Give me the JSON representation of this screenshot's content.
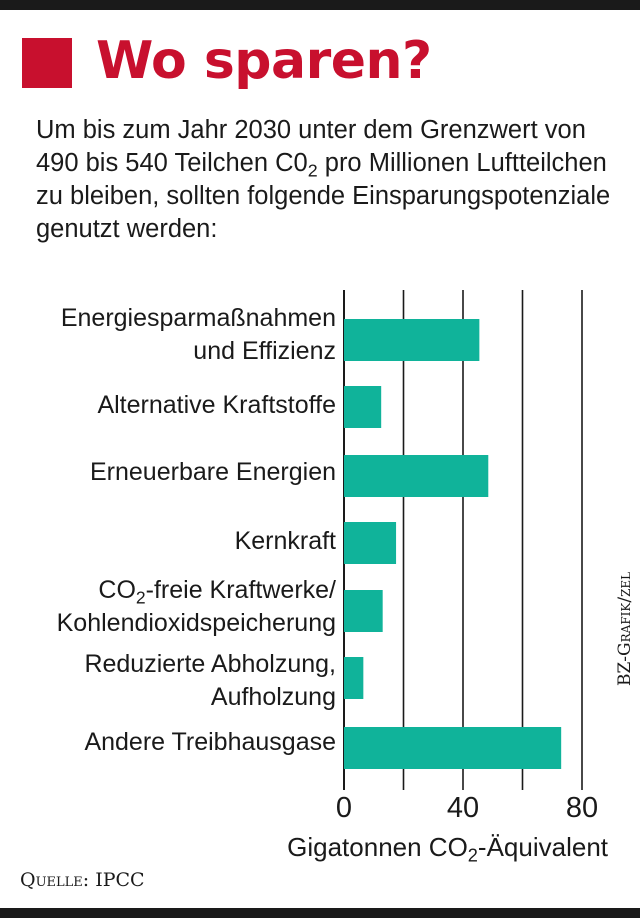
{
  "header": {
    "title": "Wo sparen?",
    "subtitle_part1": "Um bis zum Jahr 2030 unter dem Grenzwert von 490 bis 540 Teilchen C0",
    "subtitle_sub": "2",
    "subtitle_part2": " pro Millionen Luftteilchen zu bleiben, sollten folgende Einsparungspotenziale genutzt werden:"
  },
  "colors": {
    "accent": "#c8102e",
    "bar": "#10b39a",
    "text": "#1a1a1a"
  },
  "chart_data": {
    "type": "bar",
    "orientation": "horizontal",
    "categories": [
      "Energiesparmaßnahmen und Effizienz",
      "Alternative Kraftstoffe",
      "Erneuerbare Energien",
      "Kernkraft",
      "CO2-freie Kraftwerke/ Kohlendioxidspeicherung",
      "Reduzierte Abholzung, Aufholzung",
      "Andere Treibhausgase"
    ],
    "values": [
      45.5,
      12.5,
      48.5,
      17.5,
      13,
      6.5,
      73
    ],
    "xlim": [
      0,
      80
    ],
    "xticks": [
      0,
      40,
      80
    ],
    "xtick_labels": [
      "0",
      "40",
      "80"
    ],
    "gridlines": [
      0,
      20,
      40,
      60,
      80
    ],
    "grid": true,
    "xlabel_part1": "Gigatonnen CO",
    "xlabel_sub": "2",
    "xlabel_part2": "-Äquivalent",
    "labels": {
      "c0_line1": "Energiesparmaßnahmen",
      "c0_line2": "und Effizienz",
      "c1": "Alternative Kraftstoffe",
      "c2": "Erneuerbare Energien",
      "c3": "Kernkraft",
      "c4_pre": "CO",
      "c4_sub": "2",
      "c4_post": "-freie Kraftwerke/",
      "c4_line2": "Kohlendioxidspeicherung",
      "c5_line1": "Reduzierte Abholzung,",
      "c5_line2": "Aufholzung",
      "c6": "Andere Treibhausgase"
    }
  },
  "credit": "BZ-Grafik/zel",
  "source": "Quelle: IPCC"
}
